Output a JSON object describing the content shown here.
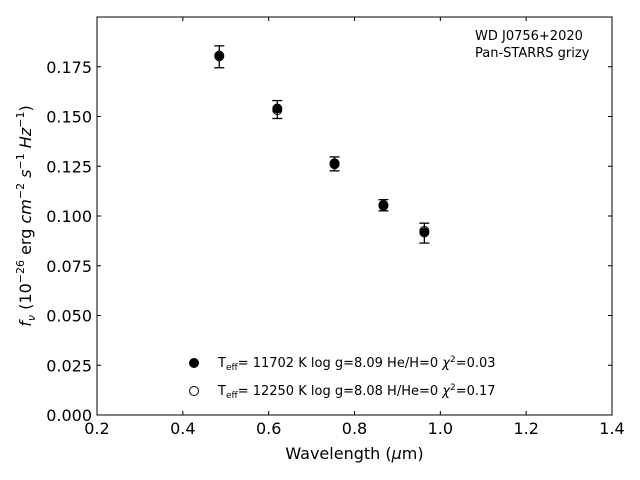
{
  "chart_data": {
    "type": "scatter",
    "annotation": [
      "WD J0756+2020",
      "Pan-STARRS grizy"
    ],
    "xlabel": {
      "prefix": "Wavelength (",
      "mu": "μ",
      "unit": "m)"
    },
    "ylabel": {
      "f": "f",
      "fsub": "ν",
      "open": " (10",
      "exp": "−26",
      "erg": " erg ",
      "cm": "cm",
      "cmexp": "−2",
      "s": " s",
      "sexp": "−1",
      "hz": " Hz",
      "hzexp": "−1",
      "close": ")"
    },
    "xlim": [
      0.2,
      1.4
    ],
    "ylim": [
      0.0,
      0.2
    ],
    "x_ticks": [
      0.2,
      0.4,
      0.6,
      0.8,
      1.0,
      1.2,
      1.4
    ],
    "x_tick_labels": [
      "0.2",
      "0.4",
      "0.6",
      "0.8",
      "1.0",
      "1.2",
      "1.4"
    ],
    "y_ticks": [
      0.0,
      0.025,
      0.05,
      0.075,
      0.1,
      0.125,
      0.15,
      0.175
    ],
    "y_tick_labels": [
      "0.000",
      "0.025",
      "0.050",
      "0.075",
      "0.100",
      "0.125",
      "0.150",
      "0.175"
    ],
    "observed": {
      "x": [
        0.4849,
        0.6201,
        0.7535,
        0.8674,
        0.9628
      ],
      "y": [
        0.18,
        0.1535,
        0.1262,
        0.1054,
        0.0914
      ],
      "yerr": [
        0.0055,
        0.0045,
        0.0035,
        0.0028,
        0.005
      ]
    },
    "series": [
      {
        "name": [
          "T",
          "eff",
          "= 11702 K  log g=8.09  He/H=0  ",
          "χ",
          "2",
          "=0.03"
        ],
        "marker": "filled",
        "x": [
          0.4849,
          0.6201,
          0.7535,
          0.8674,
          0.9628
        ],
        "y": [
          0.1806,
          0.154,
          0.1265,
          0.1055,
          0.0918
        ]
      },
      {
        "name": [
          "T",
          "eff",
          "= 12250 K  log g=8.08  H/He=0  ",
          "χ",
          "2",
          "=0.17"
        ],
        "marker": "open",
        "x": [
          0.4849,
          0.6201,
          0.7535,
          0.8674,
          0.9628
        ],
        "y": [
          0.1803,
          0.1532,
          0.126,
          0.1052,
          0.0925
        ]
      }
    ],
    "legend_loc": "lower-center",
    "grid": false,
    "colors": {
      "marker": "#000000",
      "axes": "#000000",
      "background": "#ffffff"
    }
  }
}
